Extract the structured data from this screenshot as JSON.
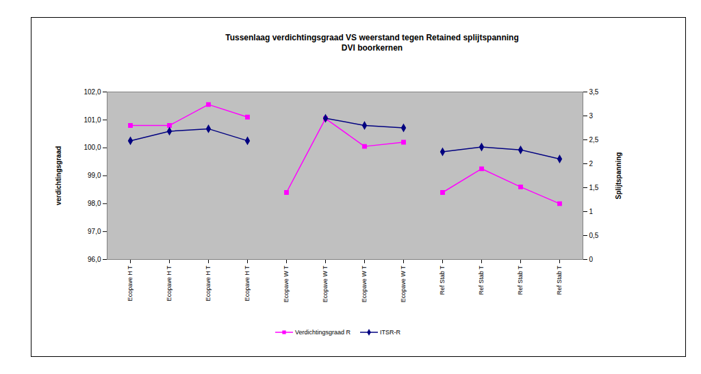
{
  "chart_data": {
    "type": "line",
    "title": "Tussenlaag verdichtingsgraad VS weerstand tegen Retained splijtspanning",
    "subtitle": "DVI boorkernen",
    "categories": [
      "Ecopave H T",
      "Ecopave H T",
      "Ecopave H T",
      "Ecopave H T",
      "Ecopave W T",
      "Ecopave W T",
      "Ecopave W T",
      "Ecopave W T",
      "Ref Stab T",
      "Ref Stab T",
      "Ref Stab T",
      "Ref Stab T"
    ],
    "y_label": "verdichtingsgraad",
    "y2_label": "Splijtspanning",
    "ylim": [
      96,
      102
    ],
    "yticks": [
      {
        "value": 96,
        "label": "96,0"
      },
      {
        "value": 97,
        "label": "97,0"
      },
      {
        "value": 98,
        "label": "98,0"
      },
      {
        "value": 99,
        "label": "99,0"
      },
      {
        "value": 100,
        "label": "100,0"
      },
      {
        "value": 101,
        "label": "101,0"
      },
      {
        "value": 102,
        "label": "102,0"
      }
    ],
    "y2lim": [
      0,
      3.5
    ],
    "y2ticks": [
      0,
      {
        "value": 0.5,
        "label": "0,5"
      },
      1,
      {
        "value": 1.5,
        "label": "1,5"
      },
      2,
      {
        "value": 2.5,
        "label": "2,5"
      },
      3,
      {
        "value": 3.5,
        "label": "3,5"
      }
    ],
    "grid": false,
    "legend": "bottom",
    "series": [
      {
        "name": "Verdichtingsgraad R",
        "color": "#ff00ff",
        "marker": "square",
        "values": [
          100.8,
          100.8,
          101.55,
          101.1,
          98.4,
          101.05,
          100.05,
          100.2,
          98.4,
          99.25,
          98.6,
          98.0
        ]
      },
      {
        "name": "ITSR-R",
        "color": "#000080",
        "marker": "diamond",
        "axis": "y2",
        "values": [
          2.48,
          2.68,
          2.73,
          2.48,
          null,
          2.95,
          2.8,
          2.75,
          2.25,
          2.35,
          2.29,
          2.1
        ]
      }
    ]
  }
}
